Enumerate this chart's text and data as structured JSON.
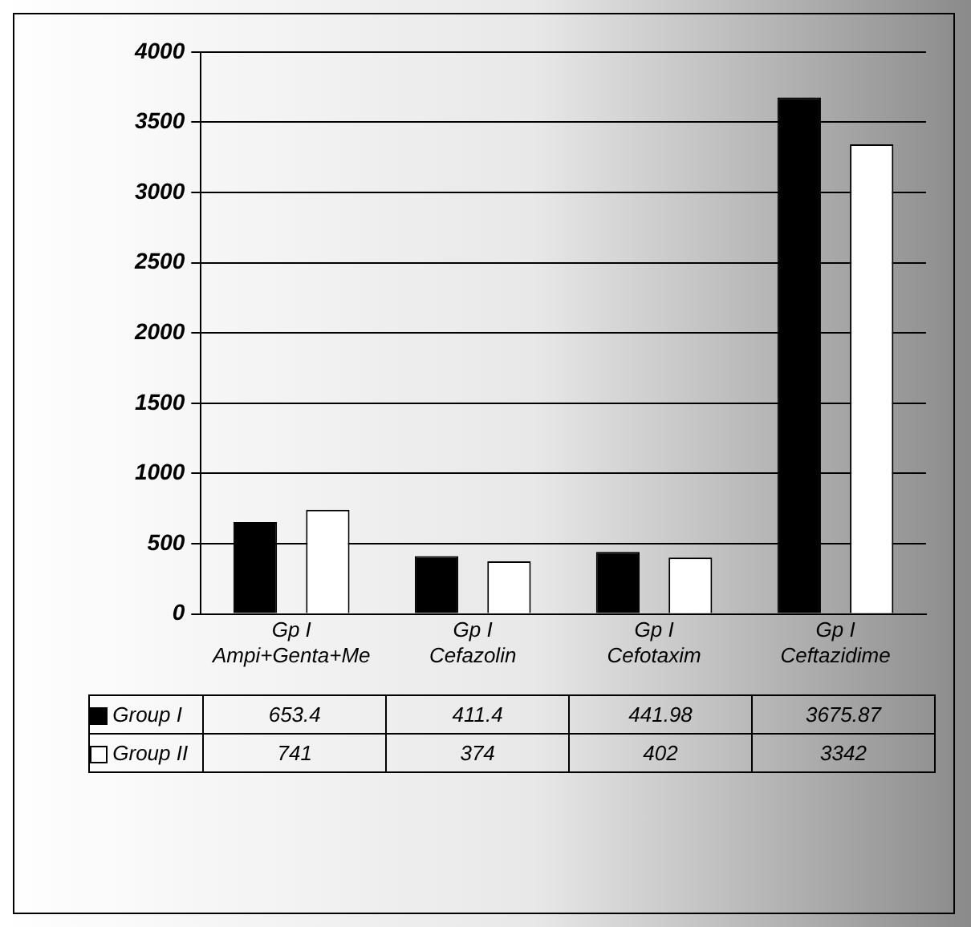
{
  "chart_data": {
    "type": "bar",
    "categories": [
      "Gp I Ampi+Genta+Me",
      "Gp I Cefazolin",
      "Gp I Cefotaxim",
      "Gp I Ceftazidime"
    ],
    "series": [
      {
        "name": "Group I",
        "color": "#000000",
        "values": [
          653.4,
          411.4,
          441.98,
          3675.87
        ]
      },
      {
        "name": "Group II",
        "color": "#ffffff",
        "values": [
          741,
          374,
          402,
          3342
        ]
      }
    ],
    "ylim": [
      0,
      4000
    ],
    "yticks": [
      0,
      500,
      1000,
      1500,
      2000,
      2500,
      3000,
      3500,
      4000
    ],
    "grid": "y",
    "legend": "bottom",
    "data_labels": true
  }
}
